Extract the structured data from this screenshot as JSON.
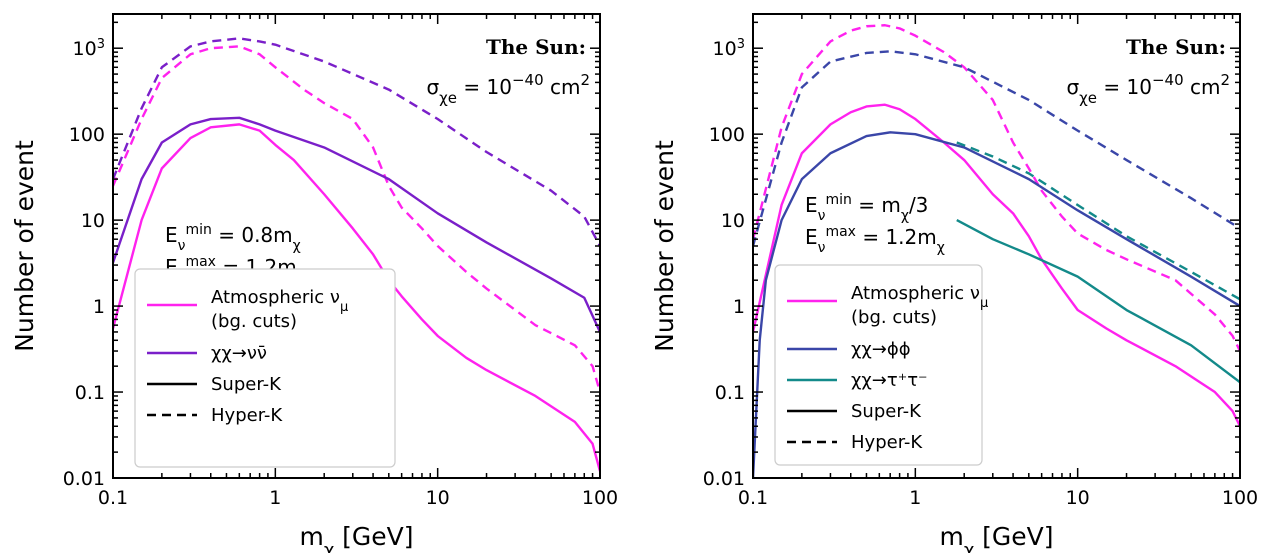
{
  "chart_data": [
    {
      "type": "line",
      "xlabel": "m_χ [GeV]",
      "ylabel": "Number of event",
      "xscale": "log",
      "yscale": "log",
      "xlim": [
        0.1,
        100
      ],
      "ylim": [
        0.01,
        2500
      ],
      "xticks": [
        0.1,
        1,
        10,
        100
      ],
      "xtick_labels": [
        "0.1",
        "1",
        "10",
        "100"
      ],
      "yticks": [
        0.01,
        0.1,
        1,
        10,
        100,
        1000
      ],
      "ytick_labels": [
        "0.01",
        "0.1",
        "1",
        "10",
        "100",
        "10^3"
      ],
      "grid": false,
      "legend_position": "lower-left",
      "title_lines": [
        "The Sun:",
        "σ_χe = 10^−40 cm^2"
      ],
      "annotation": [
        "E_ν^min = 0.8m_χ",
        "E_ν^max = 1.2m_χ"
      ],
      "legend": [
        {
          "label": "Atmospheric ν_μ",
          "label2": "(bg. cuts)",
          "color": "#ff22ee",
          "style": "solid"
        },
        {
          "label": "χχ→νν̄",
          "color": "#7a1fc9",
          "style": "solid"
        },
        {
          "label": "Super-K",
          "color": "#000000",
          "style": "solid"
        },
        {
          "label": "Hyper-K",
          "color": "#000000",
          "style": "dashed"
        }
      ],
      "series": [
        {
          "color": "#7a1fc9",
          "style": "dashed",
          "x": [
            0.1,
            0.15,
            0.2,
            0.3,
            0.4,
            0.6,
            0.8,
            1,
            2,
            5,
            10,
            20,
            50,
            80,
            100
          ],
          "y": [
            30,
            200,
            600,
            1050,
            1200,
            1300,
            1200,
            1100,
            700,
            330,
            150,
            62,
            22,
            11,
            5
          ]
        },
        {
          "color": "#ff22ee",
          "style": "dashed",
          "x": [
            0.1,
            0.15,
            0.2,
            0.3,
            0.4,
            0.6,
            0.8,
            1,
            1.5,
            2,
            3,
            4,
            5,
            6,
            8,
            10,
            15,
            20,
            40,
            70,
            90,
            100
          ],
          "y": [
            25,
            150,
            450,
            850,
            1000,
            1050,
            850,
            600,
            330,
            230,
            150,
            70,
            25,
            14,
            8,
            5,
            2.5,
            1.6,
            0.6,
            0.35,
            0.2,
            0.1
          ]
        },
        {
          "color": "#7a1fc9",
          "style": "solid",
          "x": [
            0.1,
            0.15,
            0.2,
            0.3,
            0.4,
            0.6,
            0.8,
            1,
            2,
            5,
            10,
            20,
            50,
            80,
            100
          ],
          "y": [
            3.2,
            30,
            80,
            130,
            150,
            155,
            130,
            110,
            70,
            30,
            12,
            5.5,
            2.1,
            1.25,
            0.5
          ]
        },
        {
          "color": "#ff22ee",
          "style": "solid",
          "x": [
            0.1,
            0.15,
            0.2,
            0.3,
            0.4,
            0.6,
            0.8,
            1,
            1.3,
            2,
            3,
            4,
            5,
            6,
            8,
            10,
            15,
            20,
            40,
            70,
            90,
            100
          ],
          "y": [
            0.55,
            10,
            40,
            90,
            120,
            130,
            110,
            75,
            50,
            20,
            8,
            4,
            2,
            1.3,
            0.7,
            0.45,
            0.25,
            0.18,
            0.09,
            0.045,
            0.025,
            0.012
          ]
        }
      ]
    },
    {
      "type": "line",
      "xlabel": "m_χ [GeV]",
      "ylabel": "Number of event",
      "xscale": "log",
      "yscale": "log",
      "xlim": [
        0.1,
        100
      ],
      "ylim": [
        0.01,
        2500
      ],
      "xticks": [
        0.1,
        1,
        10,
        100
      ],
      "xtick_labels": [
        "0.1",
        "1",
        "10",
        "100"
      ],
      "yticks": [
        0.01,
        0.1,
        1,
        10,
        100,
        1000
      ],
      "ytick_labels": [
        "0.01",
        "0.1",
        "1",
        "10",
        "100",
        "10^3"
      ],
      "grid": false,
      "legend_position": "lower-left",
      "title_lines": [
        "The Sun:",
        "σ_χe = 10^−40 cm^2"
      ],
      "annotation": [
        "E_ν^min = m_χ/3",
        "E_ν^max = 1.2m_χ"
      ],
      "legend": [
        {
          "label": "Atmospheric ν_μ",
          "label2": "(bg. cuts)",
          "color": "#ff22ee",
          "style": "solid"
        },
        {
          "label": "χχ→ϕϕ",
          "color": "#3a46a8",
          "style": "solid"
        },
        {
          "label": "χχ→τ⁺τ⁻",
          "color": "#138a8a",
          "style": "solid"
        },
        {
          "label": "Super-K",
          "color": "#000000",
          "style": "solid"
        },
        {
          "label": "Hyper-K",
          "color": "#000000",
          "style": "dashed"
        }
      ],
      "series": [
        {
          "color": "#ff22ee",
          "style": "dashed",
          "x": [
            0.1,
            0.15,
            0.2,
            0.3,
            0.4,
            0.5,
            0.65,
            0.8,
            1,
            1.5,
            2,
            3,
            4,
            5,
            6,
            8,
            10,
            15,
            20,
            40,
            70,
            90,
            100
          ],
          "y": [
            6,
            120,
            500,
            1200,
            1600,
            1800,
            1850,
            1700,
            1400,
            900,
            600,
            250,
            80,
            40,
            22,
            11,
            7,
            4.5,
            3.5,
            2,
            0.8,
            0.45,
            0.3
          ]
        },
        {
          "color": "#3a46a8",
          "style": "dashed",
          "x": [
            0.1,
            0.15,
            0.2,
            0.3,
            0.5,
            0.7,
            1,
            2,
            5,
            10,
            20,
            50,
            100
          ],
          "y": [
            5,
            80,
            350,
            700,
            880,
            920,
            850,
            600,
            250,
            110,
            50,
            18,
            8
          ]
        },
        {
          "color": "#138a8a",
          "style": "dashed",
          "x": [
            1.8,
            3,
            5,
            10,
            20,
            50,
            100
          ],
          "y": [
            80,
            55,
            35,
            15,
            6.5,
            2.5,
            1.2
          ]
        },
        {
          "color": "#ff22ee",
          "style": "solid",
          "x": [
            0.1,
            0.15,
            0.2,
            0.3,
            0.4,
            0.5,
            0.65,
            0.8,
            1,
            1.5,
            2,
            3,
            4,
            5,
            6,
            8,
            10,
            15,
            20,
            40,
            70,
            90,
            100
          ],
          "y": [
            0.5,
            15,
            60,
            130,
            180,
            210,
            220,
            195,
            150,
            80,
            50,
            20,
            12,
            6.5,
            3.5,
            1.6,
            0.9,
            0.55,
            0.4,
            0.2,
            0.1,
            0.06,
            0.04
          ]
        },
        {
          "color": "#3a46a8",
          "style": "solid",
          "x": [
            0.1,
            0.11,
            0.12,
            0.15,
            0.2,
            0.3,
            0.5,
            0.7,
            1,
            2,
            5,
            10,
            20,
            50,
            100
          ],
          "y": [
            0.01,
            0.4,
            2,
            10,
            30,
            60,
            95,
            105,
            100,
            70,
            30,
            13,
            6,
            2.2,
            1
          ]
        },
        {
          "color": "#138a8a",
          "style": "solid",
          "x": [
            1.8,
            3,
            5,
            10,
            20,
            50,
            100
          ],
          "y": [
            10,
            6,
            4,
            2.2,
            0.9,
            0.35,
            0.13
          ]
        }
      ]
    }
  ]
}
